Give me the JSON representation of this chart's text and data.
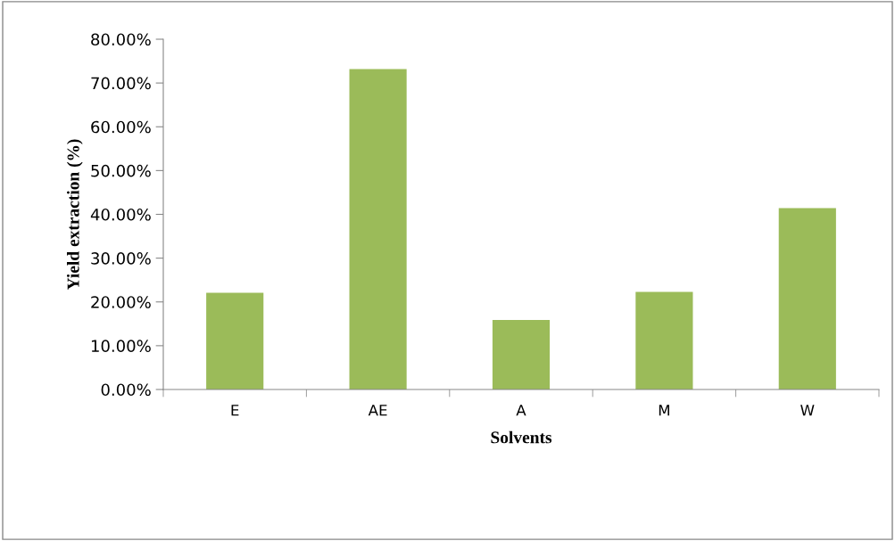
{
  "chart_data": {
    "type": "bar",
    "xlabel": "Solvents",
    "ylabel": "Yield extraction (%)",
    "categories": [
      "E",
      "AE",
      "A",
      "M",
      "W"
    ],
    "values": [
      22.1,
      73.2,
      15.9,
      22.3,
      41.4
    ],
    "color": "#9bbb59",
    "ylim": [
      0,
      80
    ],
    "yticks": [
      {
        "value": 0,
        "label": "0.00%"
      },
      {
        "value": 10,
        "label": "10.00%"
      },
      {
        "value": 20,
        "label": "20.00%"
      },
      {
        "value": 30,
        "label": "30.00%"
      },
      {
        "value": 40,
        "label": "40.00%"
      },
      {
        "value": 50,
        "label": "50.00%"
      },
      {
        "value": 60,
        "label": "60.00%"
      },
      {
        "value": 70,
        "label": "70.00%"
      },
      {
        "value": 80,
        "label": "80.00%"
      }
    ],
    "grid": false,
    "legend": false
  }
}
